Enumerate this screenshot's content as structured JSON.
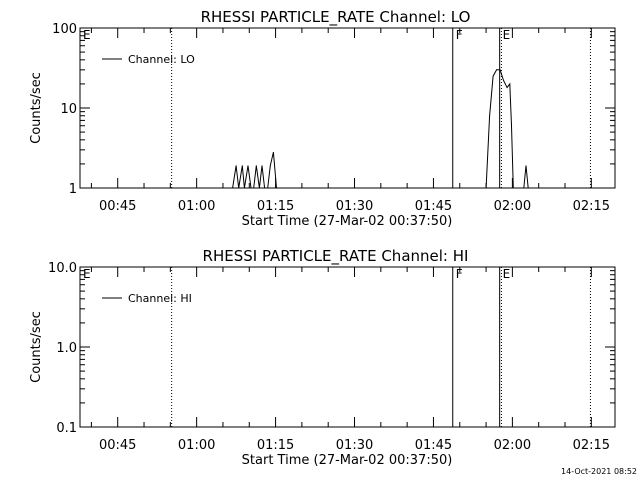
{
  "footer_timestamp": "14-Oct-2021 08:52",
  "chart_data": [
    {
      "type": "line",
      "title": "RHESSI PARTICLE_RATE Channel: LO",
      "xlabel": "Start Time (27-Mar-02 00:37:50)",
      "ylabel": "Counts/sec",
      "xlim": [
        "00:37:50",
        "02:19:30"
      ],
      "x_ticks": [
        "00:45",
        "01:00",
        "01:15",
        "01:30",
        "01:45",
        "02:00",
        "02:15"
      ],
      "y_scale": "log",
      "ylim": [
        1,
        100
      ],
      "y_ticks": [
        "1",
        "10",
        "100"
      ],
      "legend": {
        "position": "top-left",
        "entries": [
          "Channel: LO"
        ]
      },
      "markers": [
        {
          "label": "E",
          "time": "00:37:50",
          "style": "dotted"
        },
        {
          "label": "",
          "time": "00:55:15",
          "style": "dotted"
        },
        {
          "label": "F",
          "time": "01:48:40",
          "style": "solid"
        },
        {
          "label": "E",
          "time": "01:57:35",
          "style": "solid"
        },
        {
          "label": "",
          "time": "01:57:55",
          "style": "dotted"
        },
        {
          "label": "",
          "time": "02:14:50",
          "style": "dotted"
        }
      ],
      "series": [
        {
          "name": "Channel: LO",
          "x": [
            "01:06:50",
            "01:07:30",
            "01:08:00",
            "01:08:40",
            "01:09:05",
            "01:09:45",
            "01:10:20",
            "01:10:50",
            "01:11:20",
            "01:11:55",
            "01:12:25",
            "01:12:55",
            "01:13:30",
            "01:14:00",
            "01:14:35",
            "01:15:10",
            "01:15:40",
            "01:16:10",
            "01:16:50",
            "01:55:00",
            "01:55:40",
            "01:56:20",
            "01:57:00",
            "01:57:40",
            "01:58:20",
            "01:59:00",
            "01:59:30",
            "01:59:50",
            "02:00:10",
            "02:00:40",
            "02:01:20",
            "02:02:10",
            "02:02:35",
            "02:03:00",
            "02:03:30"
          ],
          "values": [
            1,
            1.9,
            1,
            1.9,
            1,
            1.9,
            1,
            1,
            1.9,
            1,
            1.9,
            1,
            1,
            1.9,
            2.8,
            1,
            1,
            1,
            1,
            1,
            8,
            25,
            30,
            30,
            22,
            18,
            20,
            6,
            1,
            1,
            1,
            1,
            1.9,
            1,
            1
          ]
        }
      ]
    },
    {
      "type": "line",
      "title": "RHESSI PARTICLE_RATE Channel: HI",
      "xlabel": "Start Time (27-Mar-02 00:37:50)",
      "ylabel": "Counts/sec",
      "xlim": [
        "00:37:50",
        "02:19:30"
      ],
      "x_ticks": [
        "00:45",
        "01:00",
        "01:15",
        "01:30",
        "01:45",
        "02:00",
        "02:15"
      ],
      "y_scale": "log",
      "ylim": [
        0.1,
        10
      ],
      "y_ticks": [
        "0.1",
        "1.0",
        "10.0"
      ],
      "legend": {
        "position": "top-left",
        "entries": [
          "Channel: HI"
        ]
      },
      "markers": [
        {
          "label": "E",
          "time": "00:37:50",
          "style": "dotted"
        },
        {
          "label": "",
          "time": "00:55:15",
          "style": "dotted"
        },
        {
          "label": "F",
          "time": "01:48:40",
          "style": "solid"
        },
        {
          "label": "E",
          "time": "01:57:35",
          "style": "solid"
        },
        {
          "label": "",
          "time": "01:57:55",
          "style": "dotted"
        },
        {
          "label": "",
          "time": "02:14:50",
          "style": "dotted"
        }
      ],
      "series": [
        {
          "name": "Channel: HI",
          "x": [],
          "values": []
        }
      ]
    }
  ]
}
